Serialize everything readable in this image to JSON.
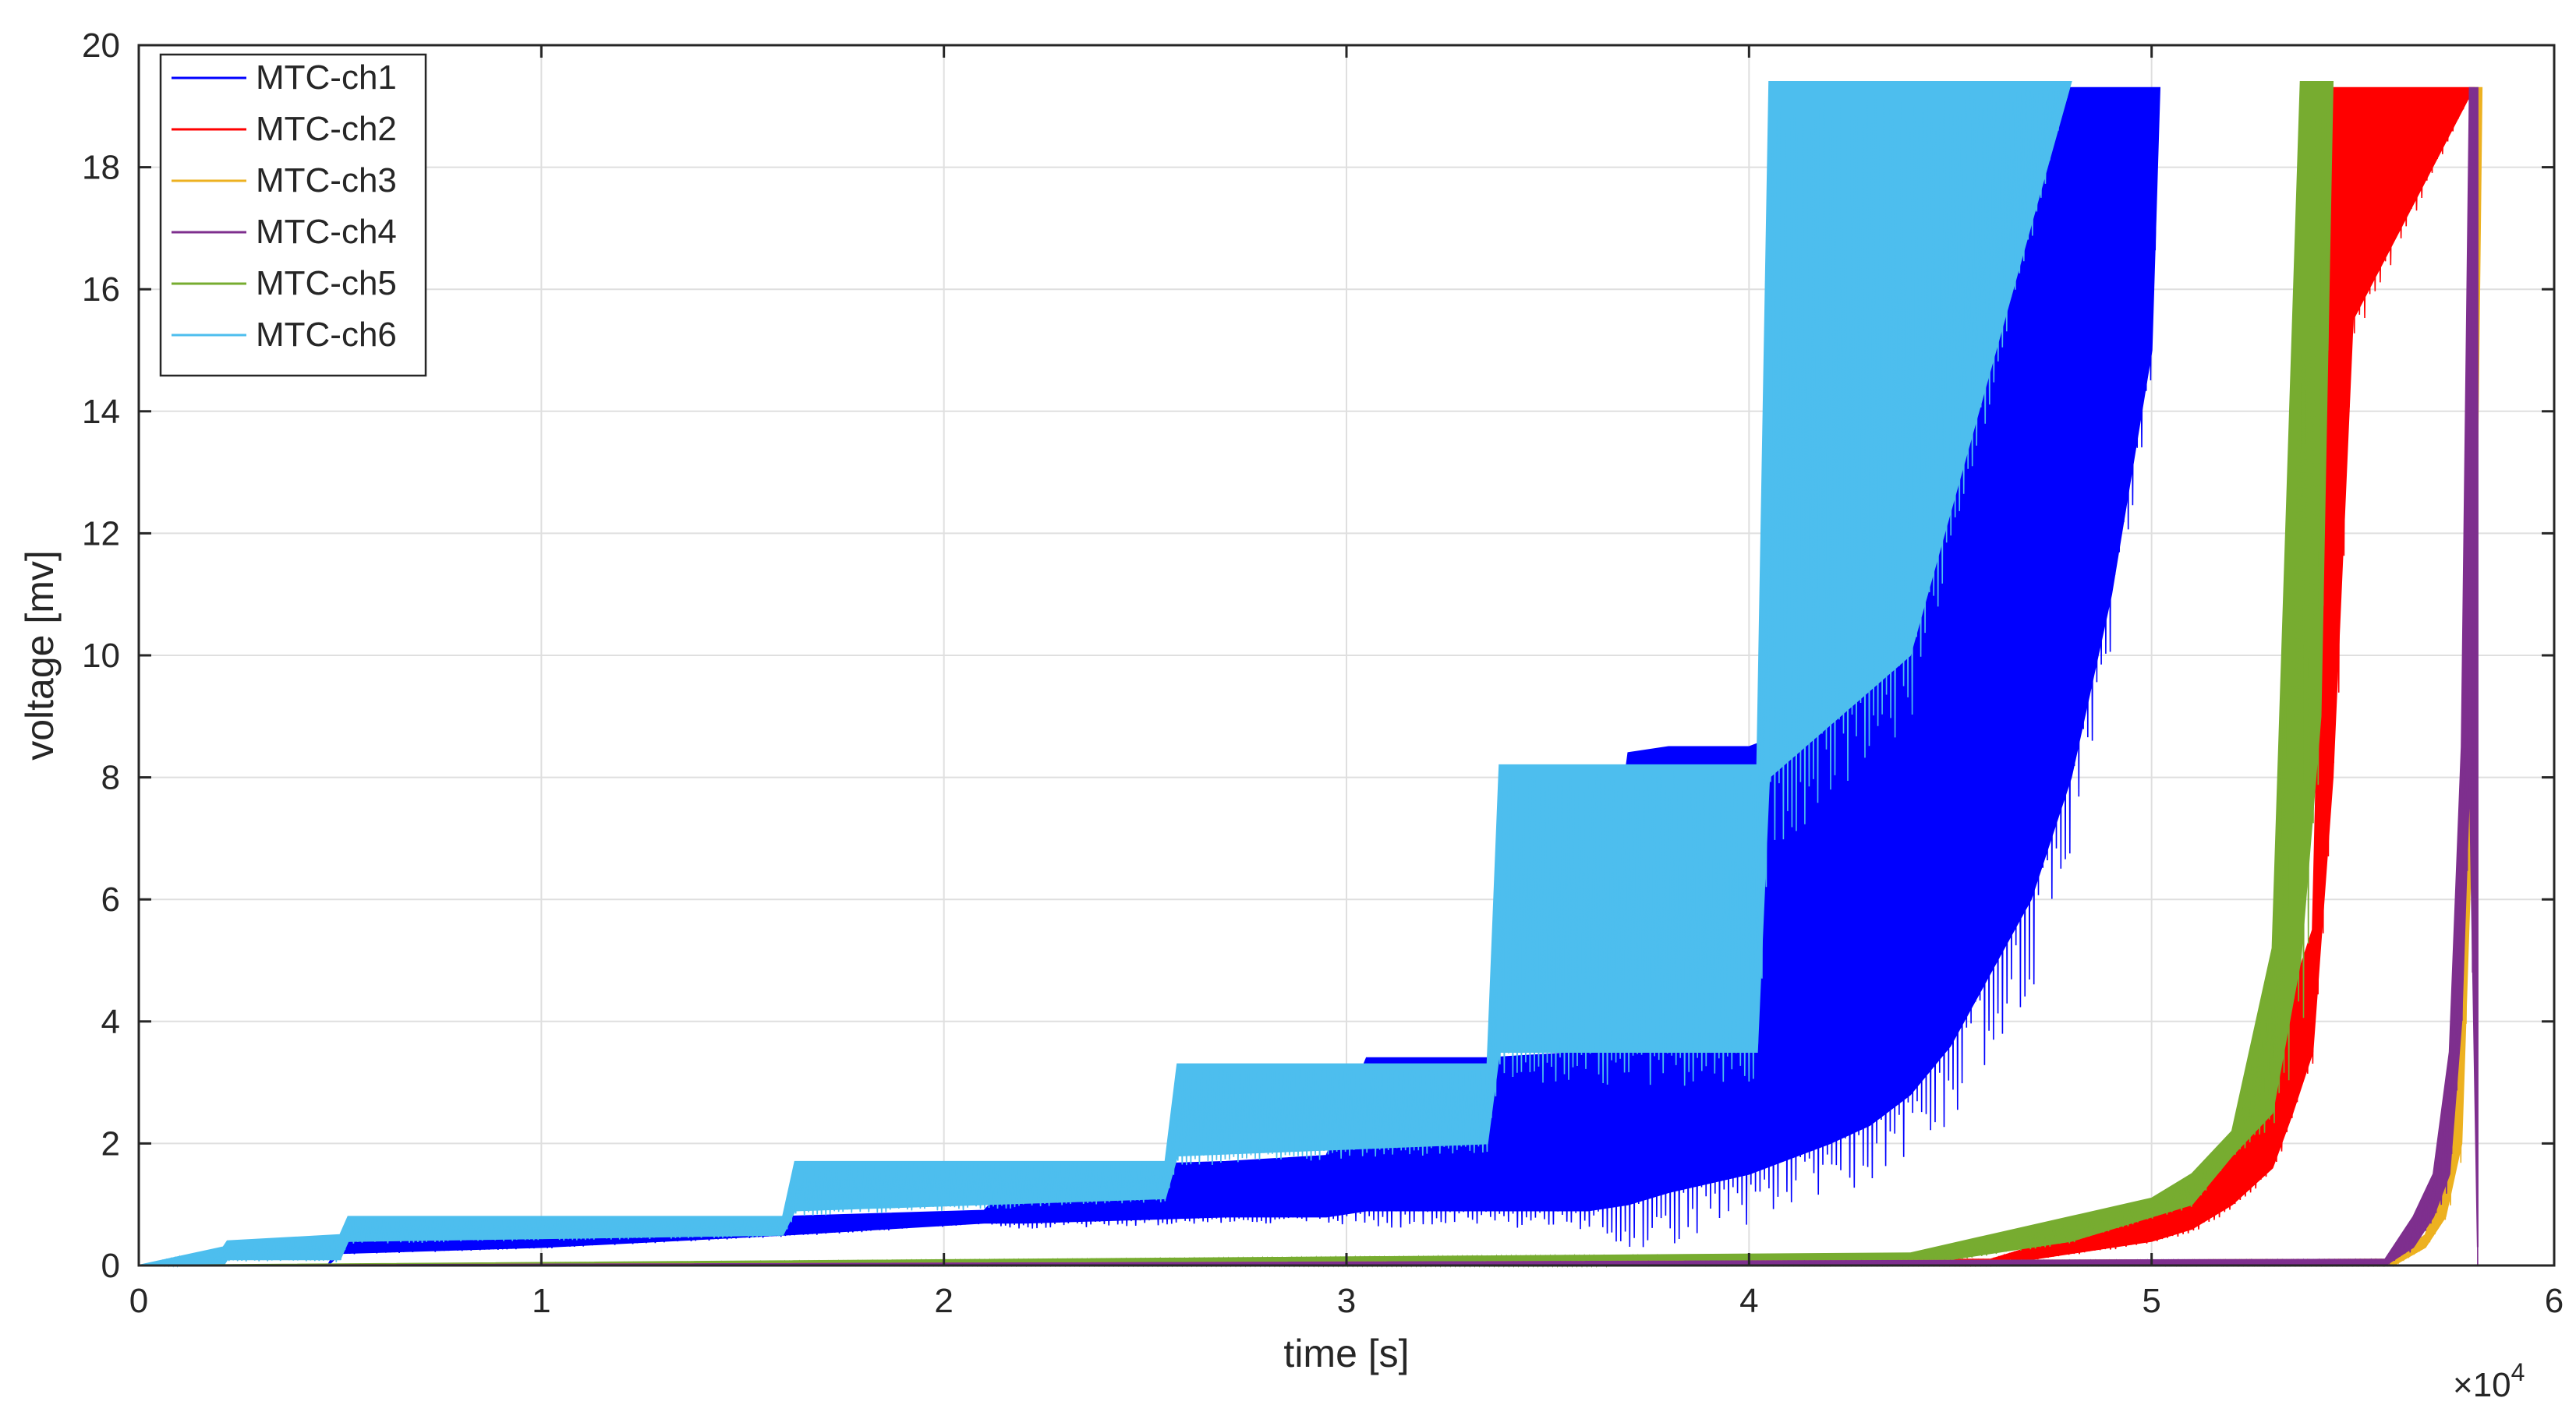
{
  "chart_data": {
    "type": "line",
    "xlabel": "time [s]",
    "ylabel": "voltage [mv]",
    "x_exponent_label": "×10",
    "x_exponent_power": "4",
    "xlim": [
      0,
      60000
    ],
    "ylim": [
      0,
      20
    ],
    "xticks": [
      0,
      10000,
      20000,
      30000,
      40000,
      50000,
      60000
    ],
    "xtick_labels": [
      "0",
      "1",
      "2",
      "3",
      "4",
      "5",
      "6"
    ],
    "yticks": [
      0,
      2,
      4,
      6,
      8,
      10,
      12,
      14,
      16,
      18,
      20
    ],
    "ytick_labels": [
      "0",
      "2",
      "4",
      "6",
      "8",
      "10",
      "12",
      "14",
      "16",
      "18",
      "20"
    ],
    "grid": true,
    "legend_position": "top-left",
    "series": [
      {
        "name": "MTC-ch1",
        "color": "#0000ff",
        "x": [
          0,
          4700,
          5000,
          10000,
          16000,
          21000,
          22000,
          27000,
          29500,
          30500,
          33500,
          36000,
          37000,
          38000,
          40000,
          42000,
          43000,
          44000,
          45000,
          46000,
          47000,
          48000,
          49000,
          50000,
          50200
        ],
        "y_low": [
          0,
          0,
          0.2,
          0.3,
          0.5,
          0.7,
          0.7,
          0.8,
          0.8,
          0.9,
          0.9,
          0.9,
          1.0,
          1.2,
          1.5,
          2.0,
          2.3,
          2.8,
          3.6,
          4.8,
          6.0,
          8.0,
          11.0,
          15.0,
          19.3
        ],
        "y_high": [
          0,
          0,
          0.4,
          0.5,
          0.8,
          0.9,
          1.6,
          1.7,
          1.8,
          3.4,
          3.4,
          3.5,
          8.4,
          8.5,
          8.5,
          9.0,
          10.5,
          12.5,
          14.5,
          16.5,
          19.3,
          19.3,
          19.3,
          19.3,
          19.3
        ]
      },
      {
        "name": "MTC-ch2",
        "color": "#ff0000",
        "x": [
          0,
          46000,
          48000,
          50000,
          51000,
          52000,
          53000,
          53500,
          54000,
          54500,
          55000,
          58000
        ],
        "y_low": [
          0,
          0,
          0.2,
          0.4,
          0.6,
          1.0,
          1.6,
          2.5,
          3.5,
          8.0,
          15.5,
          19.3
        ],
        "y_high": [
          0,
          0.1,
          0.5,
          0.8,
          1.2,
          1.8,
          2.5,
          4.5,
          5.5,
          19.3,
          19.3,
          19.3
        ]
      },
      {
        "name": "MTC-ch3",
        "color": "#edb120",
        "x": [
          0,
          56000,
          56800,
          57300,
          57700,
          58000,
          58200
        ],
        "y_low": [
          0,
          0,
          0.3,
          0.8,
          2.0,
          8.0,
          19.3
        ],
        "y_high": [
          0,
          0.1,
          0.5,
          1.5,
          6.0,
          19.3,
          19.3
        ]
      },
      {
        "name": "MTC-ch4",
        "color": "#7e2f8e",
        "x": [
          0,
          55800,
          56500,
          57000,
          57400,
          57700,
          57900,
          58100
        ],
        "y_low": [
          0,
          0,
          0.3,
          0.8,
          1.5,
          4.0,
          8.0,
          0.3
        ],
        "y_high": [
          0,
          0.1,
          0.8,
          1.5,
          3.5,
          8.5,
          19.3,
          19.3
        ]
      },
      {
        "name": "MTC-ch5",
        "color": "#77ac30",
        "x": [
          0,
          44000,
          46000,
          48000,
          50000,
          51000,
          52000,
          53000,
          53700,
          54200,
          54500
        ],
        "y_low": [
          0,
          0,
          0.2,
          0.4,
          0.8,
          1.0,
          1.8,
          2.5,
          5.0,
          9.0,
          19.4
        ],
        "y_high": [
          0,
          0.2,
          0.5,
          0.8,
          1.1,
          1.5,
          2.2,
          5.2,
          19.4,
          19.4,
          19.4
        ]
      },
      {
        "name": "MTC-ch6",
        "color": "#4dbeee",
        "x": [
          0,
          2100,
          2200,
          5000,
          5200,
          16000,
          16300,
          25500,
          25800,
          33500,
          33800,
          40200,
          40500,
          44000,
          48000
        ],
        "y_low": [
          0,
          0,
          0.1,
          0.1,
          0.4,
          0.5,
          0.9,
          1.1,
          1.8,
          2.0,
          3.5,
          3.5,
          8.0,
          10.0,
          19.4
        ],
        "y_high": [
          0,
          0.3,
          0.4,
          0.5,
          0.8,
          0.8,
          1.7,
          1.7,
          3.3,
          3.3,
          8.2,
          8.2,
          19.4,
          19.4,
          19.4
        ]
      }
    ]
  }
}
